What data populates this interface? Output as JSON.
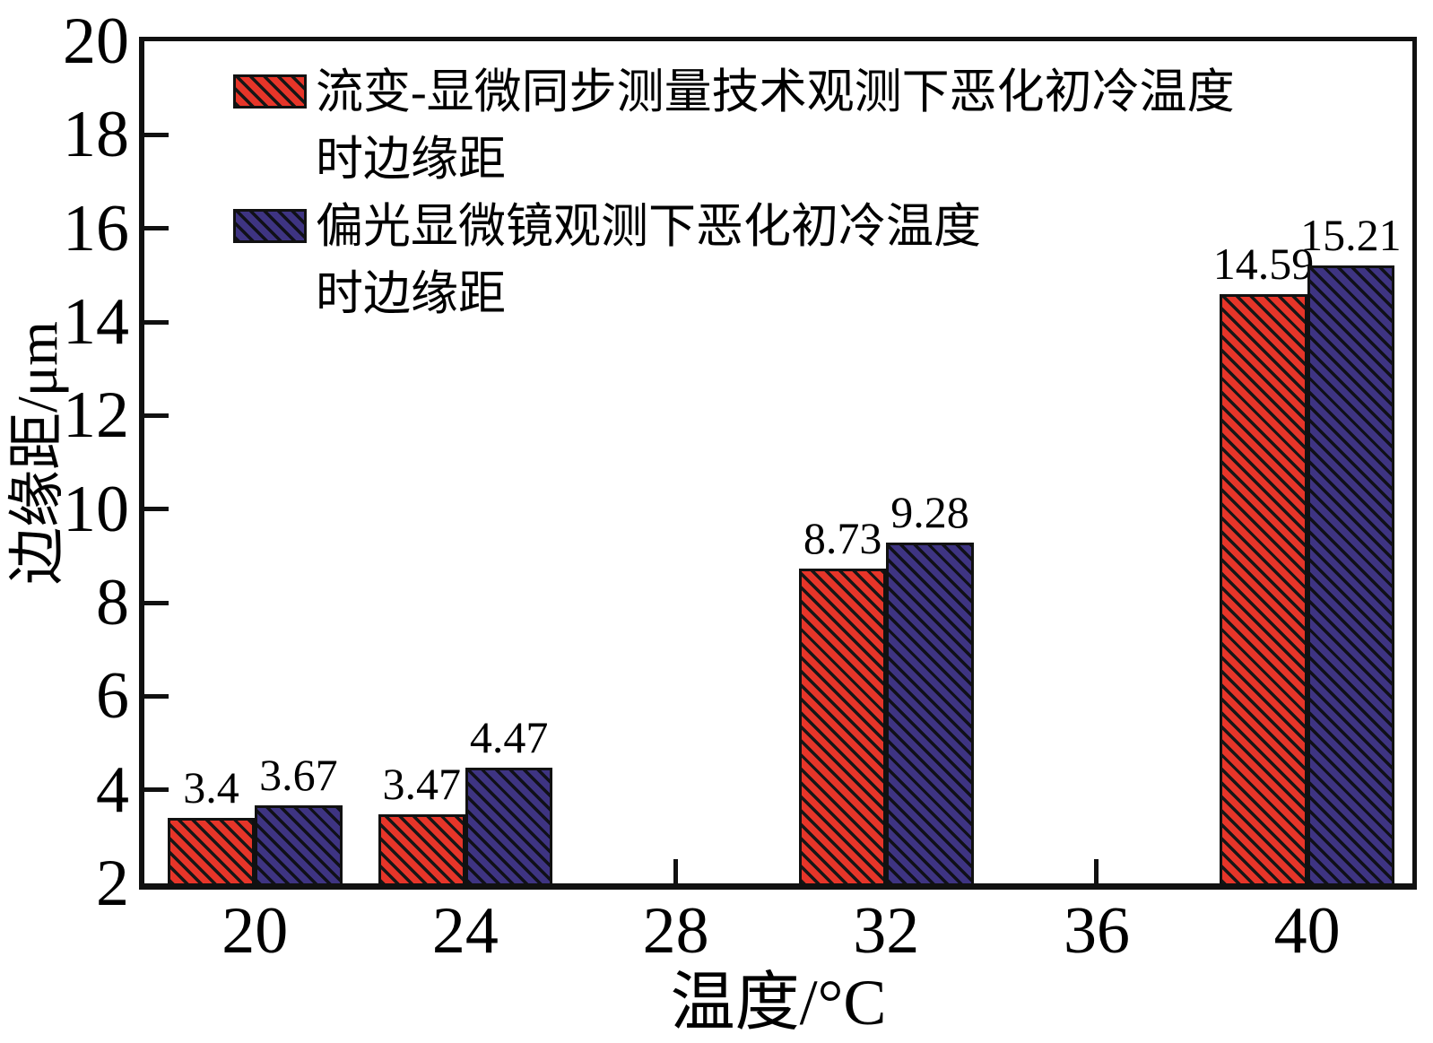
{
  "chart_data": {
    "type": "bar",
    "title": "",
    "xlabel": "温度/°C",
    "ylabel": "边缘距/μm",
    "xlim": [
      17.9,
      42.0
    ],
    "ylim": [
      2,
      20
    ],
    "x_tick_values": [
      20,
      24,
      28,
      32,
      36,
      40
    ],
    "x_tick_labels": [
      "20",
      "24",
      "28",
      "32",
      "36",
      "40"
    ],
    "y_tick_values": [
      2,
      4,
      6,
      8,
      10,
      12,
      14,
      16,
      18,
      20
    ],
    "y_tick_labels": [
      "2",
      "4",
      "6",
      "8",
      "10",
      "12",
      "14",
      "16",
      "18",
      "20"
    ],
    "categories": [
      20,
      24,
      32,
      40
    ],
    "bar_width_units": 1.66,
    "grid": false,
    "legend_position": "upper-left-inside",
    "series": [
      {
        "name": "流变-显微同步测量技术观测下恶化初冷温度时边缘距",
        "color": "#e63529",
        "hatch": "\\\\",
        "values": [
          3.4,
          3.47,
          8.73,
          14.59
        ],
        "value_labels": [
          "3.4",
          "3.47",
          "8.73",
          "14.59"
        ]
      },
      {
        "name": "偏光显微镜观测下恶化初冷温度时边缘距",
        "color": "#3e3482",
        "hatch": "\\\\",
        "values": [
          3.67,
          4.47,
          9.28,
          15.21
        ],
        "value_labels": [
          "3.67",
          "4.47",
          "9.28",
          "15.21"
        ]
      }
    ],
    "legend": [
      {
        "series": 0,
        "lines": [
          "流变-显微同步测量技术观测下恶化初冷温度",
          "时边缘距"
        ]
      },
      {
        "series": 1,
        "lines": [
          "偏光显微镜观测下恶化初冷温度",
          "时边缘距"
        ]
      }
    ],
    "colors": {
      "axis": "#111111",
      "hatch": "#161616",
      "text": "#000000",
      "background": "#ffffff"
    }
  }
}
